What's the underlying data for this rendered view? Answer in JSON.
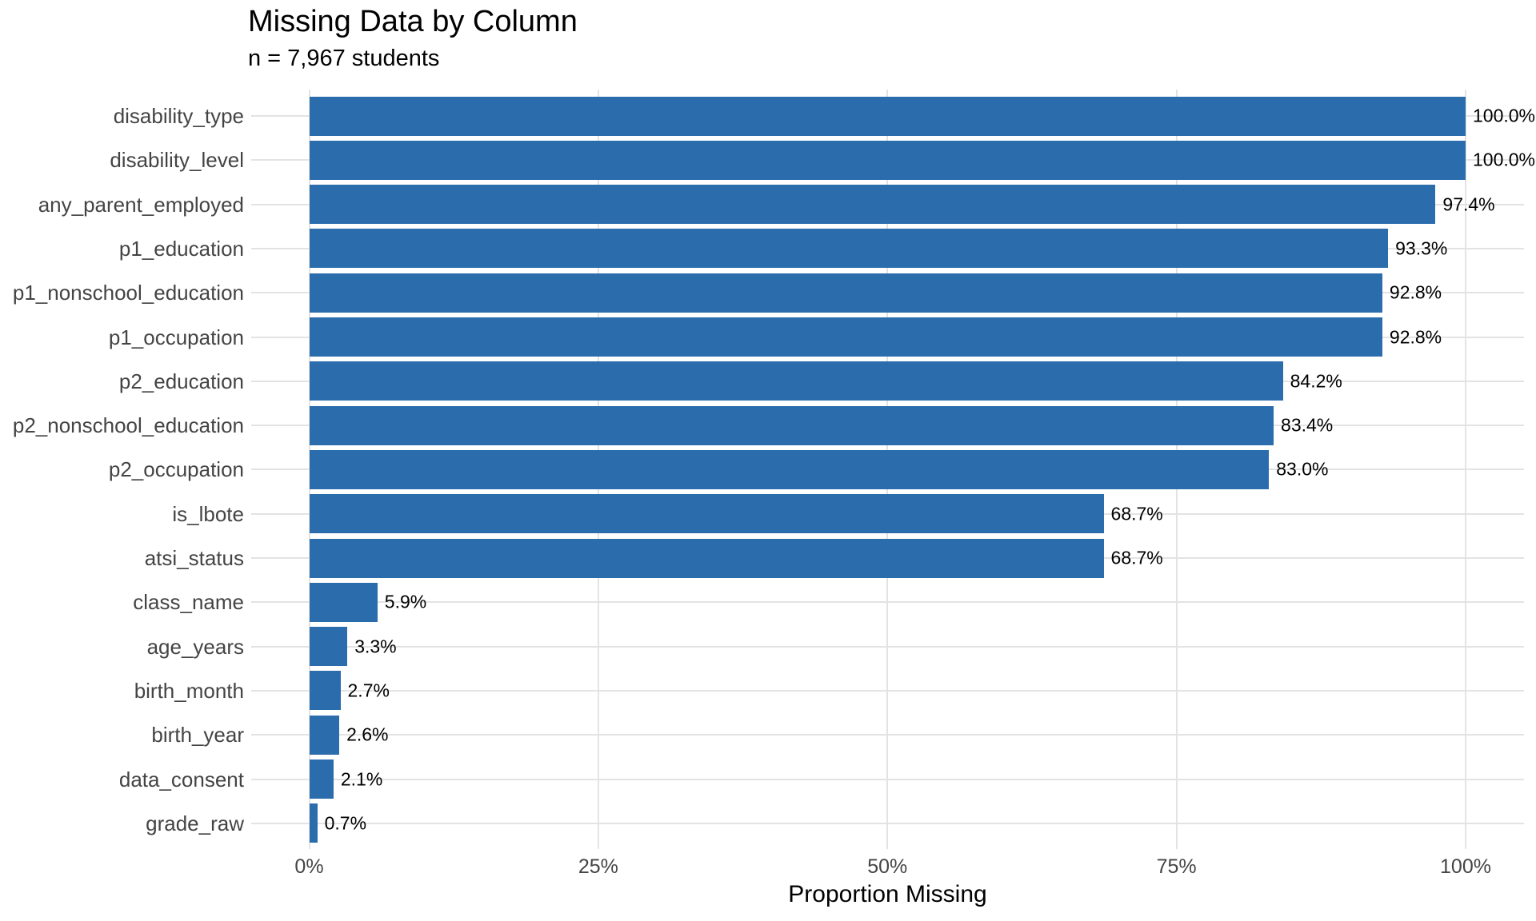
{
  "chart_data": {
    "type": "bar",
    "orientation": "horizontal",
    "title": "Missing Data by Column",
    "subtitle": "n = 7,967 students",
    "xlabel": "Proportion Missing",
    "ylabel": "",
    "xlim": [
      0,
      100
    ],
    "x_ticks": [
      {
        "label": "0%",
        "value": 0
      },
      {
        "label": "25%",
        "value": 25
      },
      {
        "label": "50%",
        "value": 50
      },
      {
        "label": "75%",
        "value": 75
      },
      {
        "label": "100%",
        "value": 100
      }
    ],
    "grid": true,
    "legend": false,
    "bar_color": "#2B6CAD",
    "grid_color": "#E3E3E3",
    "axis_text_color": "#444444",
    "categories": [
      "disability_type",
      "disability_level",
      "any_parent_employed",
      "p1_education",
      "p1_nonschool_education",
      "p1_occupation",
      "p2_education",
      "p2_nonschool_education",
      "p2_occupation",
      "is_lbote",
      "atsi_status",
      "class_name",
      "age_years",
      "birth_month",
      "birth_year",
      "data_consent",
      "grade_raw"
    ],
    "values": [
      100.0,
      100.0,
      97.4,
      93.3,
      92.8,
      92.8,
      84.2,
      83.4,
      83.0,
      68.7,
      68.7,
      5.9,
      3.3,
      2.7,
      2.6,
      2.1,
      0.7
    ],
    "value_labels": [
      "100.0%",
      "100.0%",
      "97.4%",
      "93.3%",
      "92.8%",
      "92.8%",
      "84.2%",
      "83.4%",
      "83.0%",
      "68.7%",
      "68.7%",
      "5.9%",
      "3.3%",
      "2.7%",
      "2.6%",
      "2.1%",
      "0.7%"
    ]
  }
}
